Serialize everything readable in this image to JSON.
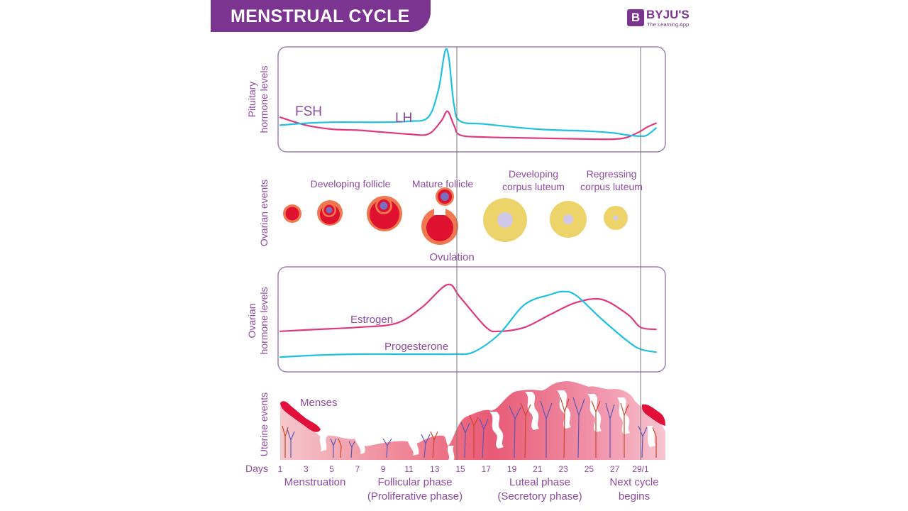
{
  "header": {
    "title": "MENSTRUAL CYCLE",
    "logo": {
      "mark": "B",
      "name": "BYJU'S",
      "tagline": "The Learning App"
    }
  },
  "colors": {
    "brand": "#7b3490",
    "label": "#8e4a9f",
    "fsh_estrogen": "#e0387f",
    "lh_progesterone": "#1fc0e0",
    "follicle_red": "#e0102f",
    "follicle_orange": "#f07850",
    "oocyte": "#7a70c0",
    "corpus_yellow": "#ecd46a",
    "corpus_center": "#d0c8e8",
    "frame": "#9a80b8",
    "divider": "#777777"
  },
  "panels": {
    "pituitary": {
      "axis_label_1": "Pituitary",
      "axis_label_2": "hormone levels",
      "fsh_label": "FSH",
      "lh_label": "LH"
    },
    "ovarian_events": {
      "axis_label": "Ovarian events",
      "labels": {
        "developing_follicle": "Developing follicle",
        "mature_follicle": "Mature follicle",
        "ovulation": "Ovulation",
        "developing_corpus_1": "Developing",
        "developing_corpus_2": "corpus luteum",
        "regressing_corpus_1": "Regressing",
        "regressing_corpus_2": "corpus luteum"
      }
    },
    "ovarian_hormones": {
      "axis_label_1": "Ovarian",
      "axis_label_2": "hormone levels",
      "estrogen_label": "Estrogen",
      "progesterone_label": "Progesterone"
    },
    "uterine": {
      "axis_label": "Uterine events",
      "menses_label": "Menses"
    }
  },
  "x_axis": {
    "label": "Days",
    "ticks": [
      "1",
      "3",
      "5",
      "7",
      "9",
      "11",
      "13",
      "15",
      "17",
      "19",
      "21",
      "23",
      "25",
      "27",
      "29/1"
    ]
  },
  "phases": {
    "menstruation": "Menstruation",
    "follicular_1": "Follicular phase",
    "follicular_2": "(Proliferative phase)",
    "luteal_1": "Luteal phase",
    "luteal_2": "(Secretory phase)",
    "next_1": "Next cycle",
    "next_2": "begins"
  },
  "chart_data": {
    "type": "line",
    "title": "MENSTRUAL CYCLE",
    "xlabel": "Days",
    "x_ticks": [
      "1",
      "3",
      "5",
      "7",
      "9",
      "11",
      "13",
      "15",
      "17",
      "19",
      "21",
      "23",
      "25",
      "27",
      "29/1"
    ],
    "markers": [
      {
        "day": 14.5,
        "label": "Ovulation"
      },
      {
        "day": 29,
        "label": "Next cycle begins"
      }
    ],
    "charts": [
      {
        "name": "Pituitary hormone levels",
        "ylim": [
          0,
          1
        ],
        "series": [
          {
            "name": "FSH",
            "x": [
              1,
              3,
              5,
              7,
              9,
              11,
              12.5,
              13.5,
              14,
              14.5,
              15,
              17,
              21,
              25,
              27,
              28,
              29,
              29.5,
              30.2
            ],
            "y": [
              0.32,
              0.24,
              0.2,
              0.19,
              0.17,
              0.15,
              0.15,
              0.28,
              0.38,
              0.24,
              0.14,
              0.12,
              0.11,
              0.1,
              0.1,
              0.12,
              0.18,
              0.22,
              0.26
            ]
          },
          {
            "name": "LH",
            "x": [
              1,
              3,
              5,
              7,
              9,
              11,
              12.5,
              13.3,
              13.8,
              14.1,
              14.5,
              15,
              17,
              21,
              25,
              27,
              28,
              29,
              29.5,
              30.2
            ],
            "y": [
              0.24,
              0.26,
              0.27,
              0.27,
              0.27,
              0.28,
              0.32,
              0.6,
              0.98,
              0.92,
              0.45,
              0.28,
              0.25,
              0.2,
              0.18,
              0.16,
              0.14,
              0.13,
              0.14,
              0.21
            ]
          }
        ]
      },
      {
        "name": "Ovarian hormone levels",
        "ylim": [
          0,
          1
        ],
        "series": [
          {
            "name": "Estrogen",
            "x": [
              1,
              4,
              7,
              10,
              12,
              14,
              15,
              17,
              18,
              20,
              22,
              24,
              26,
              28,
              29,
              30.2
            ],
            "y": [
              0.38,
              0.4,
              0.42,
              0.46,
              0.62,
              0.85,
              0.72,
              0.42,
              0.38,
              0.42,
              0.55,
              0.67,
              0.7,
              0.55,
              0.42,
              0.4
            ]
          },
          {
            "name": "Progesterone",
            "x": [
              1,
              4,
              7,
              10,
              13,
              14.5,
              16,
              18,
              20,
              22,
              23,
              24,
              26,
              28,
              29,
              30.2
            ],
            "y": [
              0.12,
              0.14,
              0.15,
              0.15,
              0.15,
              0.15,
              0.17,
              0.35,
              0.65,
              0.75,
              0.78,
              0.74,
              0.5,
              0.28,
              0.2,
              0.17
            ]
          }
        ]
      }
    ]
  }
}
